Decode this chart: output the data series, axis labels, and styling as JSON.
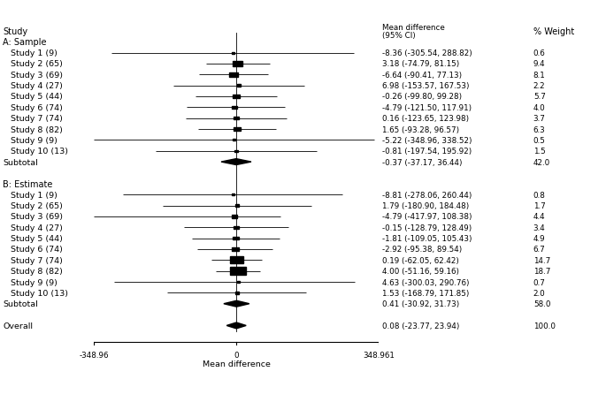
{
  "title_col1": "Study",
  "title_col3": "% Weight",
  "xmin": -348.96,
  "xmax": 348.961,
  "xtick_labels": [
    "-348.96",
    "0",
    "348.961"
  ],
  "xlabel": "Mean difference",
  "section_a_label": "A: Sample",
  "section_b_label": "B: Estimate",
  "studies_a": [
    {
      "label": "Study 1 (9)",
      "mean": -8.36,
      "lo": -305.54,
      "hi": 288.82,
      "weight": 0.6,
      "weight_str": "0.6",
      "ci_str": "-8.36 (-305.54, 288.82)"
    },
    {
      "label": "Study 2 (65)",
      "mean": 3.18,
      "lo": -74.79,
      "hi": 81.15,
      "weight": 9.4,
      "weight_str": "9.4",
      "ci_str": "3.18 (-74.79, 81.15)"
    },
    {
      "label": "Study 3 (69)",
      "mean": -6.64,
      "lo": -90.41,
      "hi": 77.13,
      "weight": 8.1,
      "weight_str": "8.1",
      "ci_str": "-6.64 (-90.41, 77.13)"
    },
    {
      "label": "Study 4 (27)",
      "mean": 6.98,
      "lo": -153.57,
      "hi": 167.53,
      "weight": 2.2,
      "weight_str": "2.2",
      "ci_str": "6.98 (-153.57, 167.53)"
    },
    {
      "label": "Study 5 (44)",
      "mean": -0.26,
      "lo": -99.8,
      "hi": 99.28,
      "weight": 5.7,
      "weight_str": "5.7",
      "ci_str": "-0.26 (-99.80, 99.28)"
    },
    {
      "label": "Study 6 (74)",
      "mean": -4.79,
      "lo": -121.5,
      "hi": 117.91,
      "weight": 4.0,
      "weight_str": "4.0",
      "ci_str": "-4.79 (-121.50, 117.91)"
    },
    {
      "label": "Study 7 (74)",
      "mean": 0.16,
      "lo": -123.65,
      "hi": 123.98,
      "weight": 3.7,
      "weight_str": "3.7",
      "ci_str": "0.16 (-123.65, 123.98)"
    },
    {
      "label": "Study 8 (82)",
      "mean": 1.65,
      "lo": -93.28,
      "hi": 96.57,
      "weight": 6.3,
      "weight_str": "6.3",
      "ci_str": "1.65 (-93.28, 96.57)"
    },
    {
      "label": "Study 9 (9)",
      "mean": -5.22,
      "lo": -348.96,
      "hi": 338.52,
      "weight": 0.5,
      "weight_str": "0.5",
      "ci_str": "-5.22 (-348.96, 338.52)"
    },
    {
      "label": "Study 10 (13)",
      "mean": -0.81,
      "lo": -197.54,
      "hi": 195.92,
      "weight": 1.5,
      "weight_str": "1.5",
      "ci_str": "-0.81 (-197.54, 195.92)"
    }
  ],
  "subtotal_a": {
    "mean": -0.37,
    "lo": -37.17,
    "hi": 36.44,
    "weight_str": "42.0",
    "label": "Subtotal",
    "ci_str": "-0.37 (-37.17, 36.44)"
  },
  "studies_b": [
    {
      "label": "Study 1 (9)",
      "mean": -8.81,
      "lo": -278.06,
      "hi": 260.44,
      "weight": 0.8,
      "weight_str": "0.8",
      "ci_str": "-8.81 (-278.06, 260.44)"
    },
    {
      "label": "Study 2 (65)",
      "mean": 1.79,
      "lo": -180.9,
      "hi": 184.48,
      "weight": 1.7,
      "weight_str": "1.7",
      "ci_str": "1.79 (-180.90, 184.48)"
    },
    {
      "label": "Study 3 (69)",
      "mean": -4.79,
      "lo": -417.97,
      "hi": 108.38,
      "weight": 4.4,
      "weight_str": "4.4",
      "ci_str": "-4.79 (-417.97, 108.38)"
    },
    {
      "label": "Study 4 (27)",
      "mean": -0.15,
      "lo": -128.79,
      "hi": 128.49,
      "weight": 3.4,
      "weight_str": "3.4",
      "ci_str": "-0.15 (-128.79, 128.49)"
    },
    {
      "label": "Study 5 (44)",
      "mean": -1.81,
      "lo": -109.05,
      "hi": 105.43,
      "weight": 4.9,
      "weight_str": "4.9",
      "ci_str": "-1.81 (-109.05, 105.43)"
    },
    {
      "label": "Study 6 (74)",
      "mean": -2.92,
      "lo": -95.38,
      "hi": 89.54,
      "weight": 6.7,
      "weight_str": "6.7",
      "ci_str": "-2.92 (-95.38, 89.54)"
    },
    {
      "label": "Study 7 (74)",
      "mean": 0.19,
      "lo": -62.05,
      "hi": 62.42,
      "weight": 14.7,
      "weight_str": "14.7",
      "ci_str": "0.19 (-62.05, 62.42)"
    },
    {
      "label": "Study 8 (82)",
      "mean": 4.0,
      "lo": -51.16,
      "hi": 59.16,
      "weight": 18.7,
      "weight_str": "18.7",
      "ci_str": "4.00 (-51.16, 59.16)"
    },
    {
      "label": "Study 9 (9)",
      "mean": 4.63,
      "lo": -300.03,
      "hi": 290.76,
      "weight": 0.7,
      "weight_str": "0.7",
      "ci_str": "4.63 (-300.03, 290.76)"
    },
    {
      "label": "Study 10 (13)",
      "mean": 1.53,
      "lo": -168.79,
      "hi": 171.85,
      "weight": 2.0,
      "weight_str": "2.0",
      "ci_str": "1.53 (-168.79, 171.85)"
    }
  ],
  "subtotal_b": {
    "mean": 0.41,
    "lo": -30.92,
    "hi": 31.73,
    "weight_str": "58.0",
    "label": "Subtotal",
    "ci_str": "0.41 (-30.92, 31.73)"
  },
  "overall": {
    "mean": 0.08,
    "lo": -23.77,
    "hi": 23.94,
    "weight_str": "100.0",
    "label": "Overall",
    "ci_str": "0.08 (-23.77, 23.94)"
  }
}
